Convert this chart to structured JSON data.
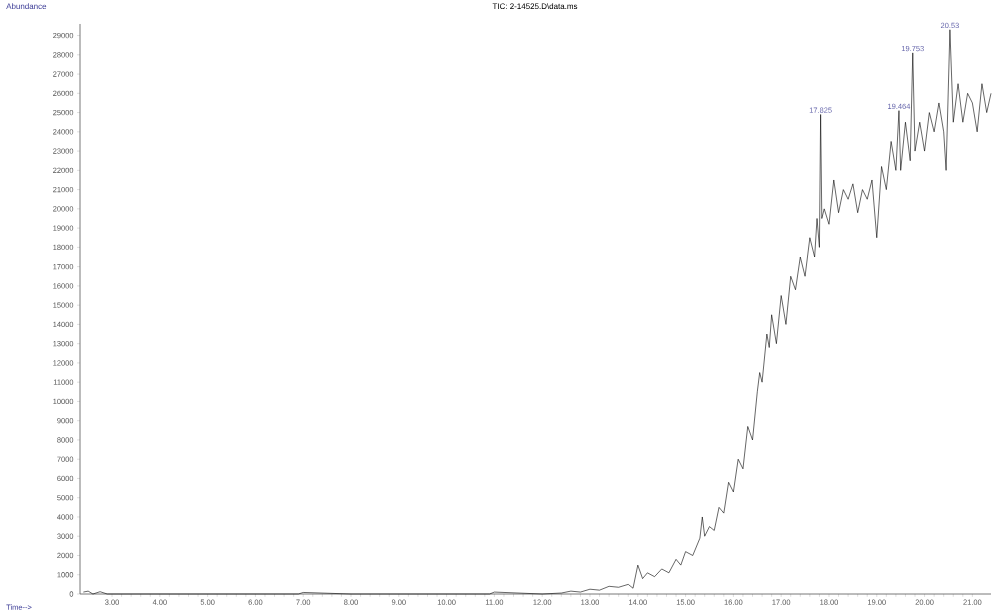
{
  "chart_data": {
    "type": "line",
    "title": "TIC: 2-14525.D\\data.ms",
    "xlabel": "Time-->",
    "ylabel": "Abundance",
    "x": [
      2.4,
      2.5,
      2.6,
      2.75,
      2.9,
      3.1,
      4.0,
      5.0,
      6.0,
      6.9,
      7.0,
      8.0,
      9.0,
      10.0,
      10.9,
      11.0,
      12.0,
      12.4,
      12.6,
      12.8,
      13.0,
      13.2,
      13.4,
      13.6,
      13.8,
      13.9,
      14.0,
      14.1,
      14.2,
      14.35,
      14.5,
      14.65,
      14.8,
      14.9,
      15.0,
      15.15,
      15.3,
      15.35,
      15.4,
      15.5,
      15.6,
      15.7,
      15.8,
      15.9,
      16.0,
      16.1,
      16.2,
      16.3,
      16.4,
      16.5,
      16.55,
      16.6,
      16.7,
      16.75,
      16.8,
      16.9,
      17.0,
      17.1,
      17.2,
      17.3,
      17.4,
      17.5,
      17.6,
      17.7,
      17.75,
      17.8,
      17.825,
      17.85,
      17.9,
      18.0,
      18.1,
      18.2,
      18.3,
      18.4,
      18.5,
      18.6,
      18.7,
      18.8,
      18.9,
      19.0,
      19.1,
      19.2,
      19.3,
      19.4,
      19.464,
      19.5,
      19.6,
      19.7,
      19.753,
      19.8,
      19.9,
      20.0,
      20.1,
      20.2,
      20.3,
      20.4,
      20.45,
      20.53,
      20.6,
      20.7,
      20.8,
      20.9,
      21.0,
      21.1,
      21.2,
      21.3,
      21.39
    ],
    "series": [
      {
        "color": "#000000",
        "values": [
          100,
          150,
          0,
          120,
          0,
          0,
          0,
          0,
          0,
          0,
          80,
          0,
          0,
          0,
          0,
          100,
          0,
          50,
          150,
          100,
          250,
          200,
          400,
          350,
          500,
          300,
          1500,
          800,
          1100,
          900,
          1300,
          1100,
          1800,
          1500,
          2200,
          2000,
          2900,
          4000,
          3000,
          3500,
          3300,
          4500,
          4200,
          5800,
          5300,
          7000,
          6500,
          8700,
          8000,
          10500,
          11500,
          11000,
          13500,
          12800,
          14500,
          13000,
          15500,
          14000,
          16500,
          15800,
          17500,
          16500,
          18500,
          17500,
          19500,
          18000,
          24900,
          19500,
          20000,
          19200,
          21500,
          19800,
          21000,
          20500,
          21300,
          19800,
          21000,
          20500,
          21500,
          18500,
          22200,
          21000,
          23500,
          22000,
          25100,
          22000,
          24500,
          22500,
          28100,
          23000,
          24500,
          23000,
          25000,
          24000,
          25500,
          24000,
          22000,
          29300,
          24500,
          26500,
          24500,
          26000,
          25500,
          24000,
          26500,
          25000,
          26000
        ]
      }
    ],
    "xlim": [
      2.33,
      21.39
    ],
    "ylim": [
      0,
      29600
    ],
    "xticks": [
      {
        "value": 3,
        "label": "3.00"
      },
      {
        "value": 4,
        "label": "4.00"
      },
      {
        "value": 5,
        "label": "5.00"
      },
      {
        "value": 6,
        "label": "6.00"
      },
      {
        "value": 7,
        "label": "7.00"
      },
      {
        "value": 8,
        "label": "8.00"
      },
      {
        "value": 9,
        "label": "9.00"
      },
      {
        "value": 10,
        "label": "10.00"
      },
      {
        "value": 11,
        "label": "11.00"
      },
      {
        "value": 12,
        "label": "12.00"
      },
      {
        "value": 13,
        "label": "13.00"
      },
      {
        "value": 14,
        "label": "14.00"
      },
      {
        "value": 15,
        "label": "15.00"
      },
      {
        "value": 16,
        "label": "16.00"
      },
      {
        "value": 17,
        "label": "17.00"
      },
      {
        "value": 18,
        "label": "18.00"
      },
      {
        "value": 19,
        "label": "19.00"
      },
      {
        "value": 20,
        "label": "20.00"
      },
      {
        "value": 21,
        "label": "21.00"
      }
    ],
    "yticks": [
      0,
      1000,
      2000,
      3000,
      4000,
      5000,
      6000,
      7000,
      8000,
      9000,
      10000,
      11000,
      12000,
      13000,
      14000,
      15000,
      16000,
      17000,
      18000,
      19000,
      20000,
      21000,
      22000,
      23000,
      24000,
      25000,
      26000,
      27000,
      28000,
      29000
    ],
    "annotations": [
      {
        "text": "17.825",
        "x": 17.825,
        "y": 24900
      },
      {
        "text": "19.464",
        "x": 19.464,
        "y": 25100
      },
      {
        "text": "19.753",
        "x": 19.753,
        "y": 28100
      },
      {
        "text": "20.53",
        "x": 20.53,
        "y": 29300
      }
    ],
    "grid": false,
    "marker": "none",
    "line_style": "solid"
  }
}
